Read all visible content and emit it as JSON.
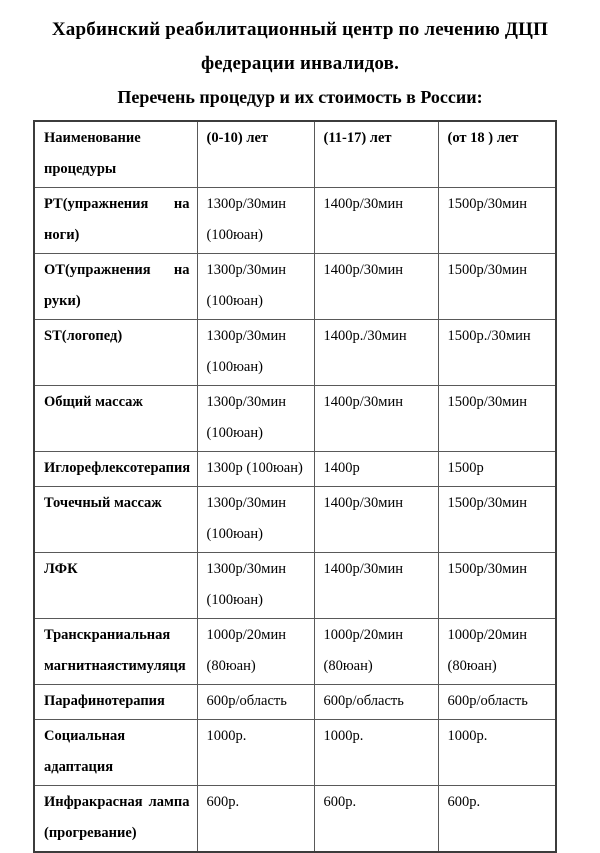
{
  "page": {
    "title_line1": "Харбинский реабилитационный центр по лечению ДЦП",
    "title_line2": "федерации инвалидов.",
    "subtitle": "Перечень процедур и их стоимость в России:"
  },
  "table": {
    "columns": [
      {
        "id": "procedure",
        "lines": [
          "Наименование",
          "процедуры"
        ]
      },
      {
        "id": "age-0-10",
        "lines": [
          "(0-10) лет"
        ]
      },
      {
        "id": "age-11-17",
        "lines": [
          "(11-17) лет"
        ]
      },
      {
        "id": "age-18-plus",
        "lines": [
          "(от 18 ) лет"
        ]
      }
    ],
    "rows": [
      {
        "procedure": [
          "РТ(упражнения на",
          "ноги)"
        ],
        "age_0_10": [
          "1300р/30мин",
          "(100юан)"
        ],
        "age_11_17": [
          "1400р/30мин"
        ],
        "age_18_plus": [
          "1500р/30мин"
        ]
      },
      {
        "procedure": [
          "ОТ(упражнения на",
          "руки)"
        ],
        "age_0_10": [
          "1300р/30мин",
          "(100юан)"
        ],
        "age_11_17": [
          "1400р/30мин"
        ],
        "age_18_plus": [
          "1500р/30мин"
        ]
      },
      {
        "procedure": [
          "ST(логопед)"
        ],
        "age_0_10": [
          "1300р/30мин",
          "(100юан)"
        ],
        "age_11_17": [
          "1400р./30мин"
        ],
        "age_18_plus": [
          "1500р./30мин"
        ]
      },
      {
        "procedure": [
          "Общий массаж"
        ],
        "age_0_10": [
          "1300р/30мин",
          "(100юан)"
        ],
        "age_11_17": [
          "1400р/30мин"
        ],
        "age_18_plus": [
          "1500р/30мин"
        ]
      },
      {
        "procedure": [
          "Иглорефлексотерапия"
        ],
        "age_0_10": [
          "1300р (100юан)"
        ],
        "age_11_17": [
          "1400р"
        ],
        "age_18_plus": [
          "1500р"
        ]
      },
      {
        "procedure": [
          "Точечный массаж"
        ],
        "age_0_10": [
          "1300р/30мин",
          "(100юан)"
        ],
        "age_11_17": [
          "1400р/30мин"
        ],
        "age_18_plus": [
          "1500р/30мин"
        ]
      },
      {
        "procedure": [
          "ЛФК"
        ],
        "age_0_10": [
          "1300р/30мин",
          "(100юан)"
        ],
        "age_11_17": [
          "1400р/30мин"
        ],
        "age_18_plus": [
          "1500р/30мин"
        ]
      },
      {
        "procedure": [
          "Транскраниальная",
          "магнитнаястимуляця"
        ],
        "age_0_10": [
          "1000р/20мин",
          "(80юан)"
        ],
        "age_11_17": [
          "1000р/20мин",
          "(80юан)"
        ],
        "age_18_plus": [
          "1000р/20мин",
          "(80юан)"
        ]
      },
      {
        "procedure": [
          "Парафинотерапия"
        ],
        "age_0_10": [
          "600р/область"
        ],
        "age_11_17": [
          "600р/область"
        ],
        "age_18_plus": [
          "600р/область"
        ]
      },
      {
        "procedure": [
          "Социальная",
          "адаптация"
        ],
        "age_0_10": [
          "1000р."
        ],
        "age_11_17": [
          "1000р."
        ],
        "age_18_plus": [
          "1000р."
        ]
      },
      {
        "procedure": [
          "Инфракрасная лампа",
          "(прогревание)"
        ],
        "age_0_10": [
          "600р."
        ],
        "age_11_17": [
          "600р."
        ],
        "age_18_plus": [
          "600р."
        ]
      }
    ]
  }
}
